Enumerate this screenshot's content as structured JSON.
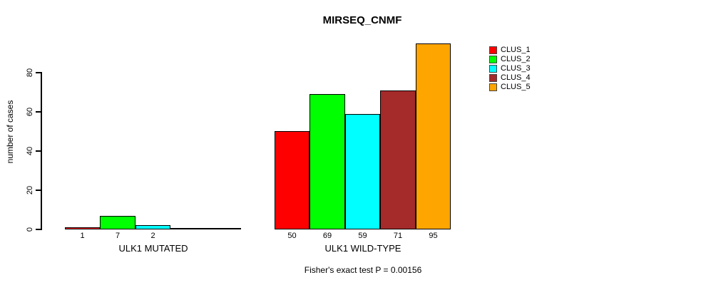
{
  "chart_data": {
    "type": "bar",
    "title": "MIRSEQ_CNMF",
    "ylabel": "number of cases",
    "xlabel": "",
    "ylim": [
      0,
      80
    ],
    "yticks": [
      0,
      20,
      40,
      60,
      80
    ],
    "grid": false,
    "legend_position": "top-right",
    "categories": [
      "ULK1 MUTATED",
      "ULK1 WILD-TYPE"
    ],
    "series": [
      {
        "name": "CLUS_1",
        "color": "#ff0000",
        "values": [
          1,
          50
        ]
      },
      {
        "name": "CLUS_2",
        "color": "#00ff00",
        "values": [
          7,
          69
        ]
      },
      {
        "name": "CLUS_3",
        "color": "#00ffff",
        "values": [
          2,
          59
        ]
      },
      {
        "name": "CLUS_4",
        "color": "#a52a2a",
        "values": [
          0,
          71
        ]
      },
      {
        "name": "CLUS_5",
        "color": "#ffa500",
        "values": [
          0,
          95
        ]
      }
    ],
    "bar_value_labels": [
      [
        "1",
        "7",
        "2",
        "",
        ""
      ],
      [
        "50",
        "69",
        "59",
        "71",
        "95"
      ]
    ],
    "annotation": "Fisher's exact test P = 0.00156",
    "axis_color": "#000000",
    "text_color": "#000000",
    "background_color": "#ffffff"
  }
}
